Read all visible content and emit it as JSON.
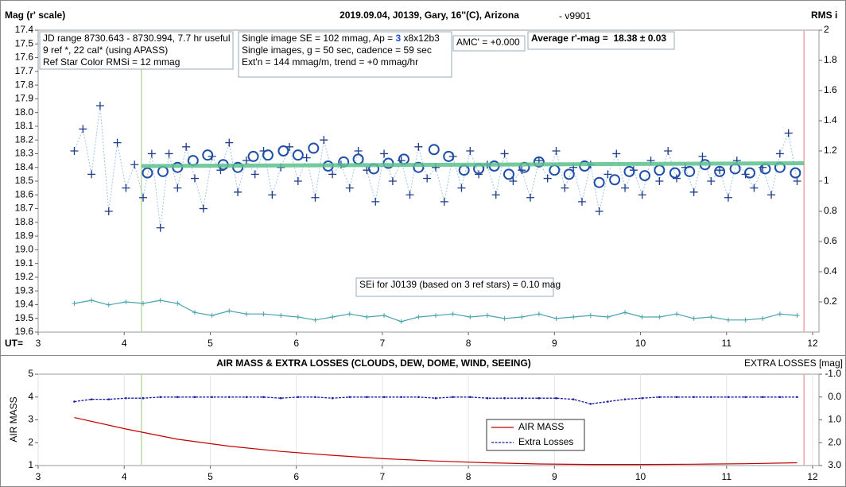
{
  "chart_data": [
    {
      "type": "scatter",
      "title": "2019.09.04, J0139, Gary, 16''(C), Arizona",
      "subtitle": "- v9901",
      "y_label": "Mag (r' scale)",
      "y2_label": "RMS i",
      "x_label": "UT=",
      "xlim": [
        3,
        12
      ],
      "xticks": [
        3,
        4,
        5,
        6,
        7,
        8,
        9,
        10,
        11,
        12
      ],
      "ylim": [
        17.4,
        19.6
      ],
      "y_inverted": true,
      "yticks": [
        17.4,
        17.5,
        17.6,
        17.7,
        17.8,
        17.9,
        {
          "value": 18.0,
          "label": "18.0"
        },
        18.1,
        18.2,
        18.3,
        18.4,
        18.5,
        18.6,
        18.7,
        18.8,
        18.9,
        {
          "value": 19.0,
          "label": "19.0"
        },
        19.1,
        19.2,
        19.3,
        19.4,
        19.5,
        19.6
      ],
      "y2lim": [
        0,
        2
      ],
      "y2ticks": [
        0.2,
        0.4,
        0.6,
        0.8,
        1,
        1.2,
        1.4,
        1.6,
        1.8,
        2
      ],
      "grid": false,
      "vlines": [
        {
          "x": 4.2,
          "color": "#b9dc9f"
        },
        {
          "x": 11.9,
          "color": "#f3a3a3"
        }
      ],
      "notes": [
        {
          "lines": [
            "JD range 8730.643 - 8730.994, 7.7 hr useful",
            "9 ref *, 22 cal* (using APASS)",
            "Ref Star Color RMSi = 12 mmag"
          ]
        },
        {
          "lines": [
            {
              "parts": [
                "Single image SE = 102 mmag, Ap = ",
                "3",
                " x8x12b3"
              ]
            },
            "Single images, g = 50 sec, cadence = 59 sec",
            "Ext'n = 144 mmag/m, trend = +0 mmag/hr"
          ]
        },
        {
          "lines": [
            "AMC' = +0.000"
          ]
        },
        {
          "lines": [
            "Average r'-mag =  18.38 ± 0.03"
          ]
        },
        {
          "lines": [
            "SEi for J0139 (based on 3 ref stars) = 0.10 mag"
          ]
        }
      ],
      "series": [
        {
          "marker": "cross",
          "color": "#1f3c88",
          "line_color": "#9fc3e6",
          "x": [
            3.42,
            3.52,
            3.62,
            3.72,
            3.82,
            3.92,
            4.02,
            4.12,
            4.22,
            4.32,
            4.42,
            4.52,
            4.62,
            4.72,
            4.82,
            4.92,
            5.02,
            5.12,
            5.22,
            5.32,
            5.42,
            5.52,
            5.62,
            5.72,
            5.82,
            5.92,
            6.02,
            6.12,
            6.22,
            6.32,
            6.42,
            6.52,
            6.62,
            6.72,
            6.82,
            6.92,
            7.02,
            7.12,
            7.22,
            7.32,
            7.42,
            7.52,
            7.62,
            7.72,
            7.82,
            7.92,
            8.02,
            8.12,
            8.22,
            8.32,
            8.42,
            8.52,
            8.62,
            8.72,
            8.82,
            8.92,
            9.02,
            9.12,
            9.22,
            9.32,
            9.42,
            9.52,
            9.62,
            9.72,
            9.82,
            9.92,
            10.02,
            10.12,
            10.22,
            10.32,
            10.42,
            10.52,
            10.62,
            10.72,
            10.82,
            10.92,
            11.02,
            11.12,
            11.22,
            11.32,
            11.42,
            11.52,
            11.62,
            11.72,
            11.82
          ],
          "values": [
            18.28,
            18.12,
            18.45,
            17.95,
            18.72,
            18.22,
            18.55,
            18.38,
            18.62,
            18.3,
            18.84,
            18.3,
            18.55,
            18.25,
            18.48,
            18.7,
            18.32,
            18.42,
            18.22,
            18.58,
            18.35,
            18.45,
            18.28,
            18.6,
            18.4,
            18.25,
            18.5,
            18.33,
            18.62,
            18.2,
            18.45,
            18.38,
            18.55,
            18.28,
            18.42,
            18.65,
            18.3,
            18.5,
            18.35,
            18.6,
            18.25,
            18.48,
            18.4,
            18.65,
            18.32,
            18.55,
            18.28,
            18.45,
            18.38,
            18.6,
            18.3,
            18.5,
            18.42,
            18.62,
            18.35,
            18.48,
            18.28,
            18.55,
            18.4,
            18.65,
            18.38,
            18.72,
            18.45,
            18.3,
            18.55,
            18.42,
            18.6,
            18.35,
            18.5,
            18.28,
            18.48,
            18.4,
            18.58,
            18.32,
            18.5,
            18.42,
            18.62,
            18.35,
            18.45,
            18.55,
            18.4,
            18.6,
            18.3,
            18.15,
            18.5
          ]
        },
        {
          "marker": "circle",
          "color": "#1f4fa8",
          "x": [
            4.27,
            4.45,
            4.62,
            4.8,
            4.97,
            5.15,
            5.32,
            5.5,
            5.67,
            5.85,
            6.02,
            6.2,
            6.37,
            6.55,
            6.72,
            6.9,
            7.07,
            7.25,
            7.42,
            7.6,
            7.77,
            7.95,
            8.12,
            8.3,
            8.47,
            8.65,
            8.82,
            9.0,
            9.17,
            9.35,
            9.52,
            9.7,
            9.87,
            10.05,
            10.22,
            10.4,
            10.57,
            10.75,
            10.92,
            11.1,
            11.27,
            11.45,
            11.62,
            11.8
          ],
          "values": [
            18.44,
            18.43,
            18.4,
            18.35,
            18.31,
            18.38,
            18.4,
            18.32,
            18.31,
            18.28,
            18.31,
            18.26,
            18.39,
            18.36,
            18.34,
            18.41,
            18.37,
            18.34,
            18.4,
            18.27,
            18.32,
            18.42,
            18.41,
            18.39,
            18.45,
            18.4,
            18.36,
            18.42,
            18.45,
            18.39,
            18.51,
            18.49,
            18.43,
            18.46,
            18.42,
            18.44,
            18.43,
            18.38,
            18.43,
            18.41,
            18.44,
            18.41,
            18.4,
            18.44
          ]
        },
        {
          "marker": "line",
          "color": "#5cbf8c",
          "x": [
            4.2,
            11.9
          ],
          "values": [
            18.39,
            18.37
          ]
        },
        {
          "marker": "plus-line",
          "axis": "y2",
          "color": "#4aa3ad",
          "x": [
            3.42,
            3.62,
            3.82,
            4.02,
            4.22,
            4.42,
            4.62,
            4.82,
            5.02,
            5.22,
            5.42,
            5.62,
            5.82,
            6.02,
            6.22,
            6.42,
            6.62,
            6.82,
            7.02,
            7.22,
            7.42,
            7.62,
            7.82,
            8.02,
            8.22,
            8.42,
            8.62,
            8.82,
            9.02,
            9.22,
            9.42,
            9.62,
            9.82,
            10.02,
            10.22,
            10.42,
            10.62,
            10.82,
            11.02,
            11.22,
            11.42,
            11.62,
            11.82
          ],
          "values": [
            0.19,
            0.21,
            0.18,
            0.2,
            0.19,
            0.21,
            0.19,
            0.13,
            0.11,
            0.14,
            0.12,
            0.12,
            0.11,
            0.1,
            0.08,
            0.1,
            0.12,
            0.1,
            0.11,
            0.07,
            0.1,
            0.11,
            0.12,
            0.1,
            0.11,
            0.09,
            0.1,
            0.12,
            0.09,
            0.1,
            0.11,
            0.1,
            0.13,
            0.1,
            0.1,
            0.12,
            0.09,
            0.1,
            0.08,
            0.08,
            0.09,
            0.12,
            0.11
          ]
        }
      ]
    },
    {
      "type": "line",
      "title": "AIR MASS & EXTRA LOSSES (CLOUDS, DEW, DOME, WIND, SEEING)",
      "y_label": "AIR MASS",
      "y2_label": "EXTRA LOSSES [mag]",
      "xlim": [
        3,
        12
      ],
      "xticks": [
        3,
        4,
        5,
        6,
        7,
        8,
        9,
        10,
        11,
        12
      ],
      "ylim": [
        1,
        5
      ],
      "yticks": [
        1,
        2,
        3,
        4,
        5
      ],
      "y2lim": [
        -1,
        3
      ],
      "y2_inverted": true,
      "y2ticks": [
        {
          "value": -1,
          "label": "-1.0"
        },
        {
          "value": 0,
          "label": "0.0"
        },
        {
          "value": 1,
          "label": "1.0"
        },
        {
          "value": 2,
          "label": "2.0"
        },
        {
          "value": 3,
          "label": "3.0"
        }
      ],
      "grid": true,
      "vlines": [
        {
          "x": 4.2,
          "color": "#b9dc9f"
        },
        {
          "x": 11.9,
          "color": "#f3a3a3"
        }
      ],
      "series": [
        {
          "name": "AIR MASS",
          "color": "#c00000",
          "x": [
            3.42,
            4.02,
            4.62,
            5.22,
            5.82,
            6.42,
            7.02,
            7.62,
            8.22,
            8.82,
            9.42,
            10.02,
            10.62,
            11.22,
            11.82
          ],
          "values": [
            3.1,
            2.6,
            2.15,
            1.85,
            1.62,
            1.45,
            1.3,
            1.2,
            1.12,
            1.07,
            1.05,
            1.05,
            1.06,
            1.08,
            1.12
          ]
        },
        {
          "name": "Extra Losses",
          "axis": "y2",
          "color": "#1a1aa8",
          "dashed": true,
          "x": [
            3.42,
            3.62,
            3.82,
            4.02,
            4.22,
            4.42,
            4.62,
            4.82,
            5.02,
            5.22,
            5.42,
            5.62,
            5.82,
            6.02,
            6.22,
            6.42,
            6.62,
            6.82,
            7.02,
            7.22,
            7.42,
            7.62,
            7.82,
            8.02,
            8.22,
            8.42,
            8.62,
            8.82,
            9.02,
            9.22,
            9.42,
            9.62,
            9.82,
            10.02,
            10.22,
            10.42,
            10.62,
            10.82,
            11.02,
            11.22,
            11.42,
            11.62,
            11.82
          ],
          "values": [
            0.2,
            0.1,
            0.1,
            0.05,
            0.05,
            0.0,
            0.0,
            0.0,
            0.0,
            0.0,
            0.0,
            0.0,
            0.05,
            0.0,
            0.0,
            0.05,
            0.0,
            0.0,
            0.0,
            0.0,
            0.0,
            0.05,
            0.0,
            0.0,
            0.05,
            0.05,
            0.05,
            0.05,
            0.05,
            0.1,
            0.3,
            0.2,
            0.1,
            0.05,
            0.0,
            0.0,
            0.0,
            0.0,
            0.0,
            0.0,
            0.0,
            0.0,
            0.0
          ]
        }
      ]
    }
  ]
}
